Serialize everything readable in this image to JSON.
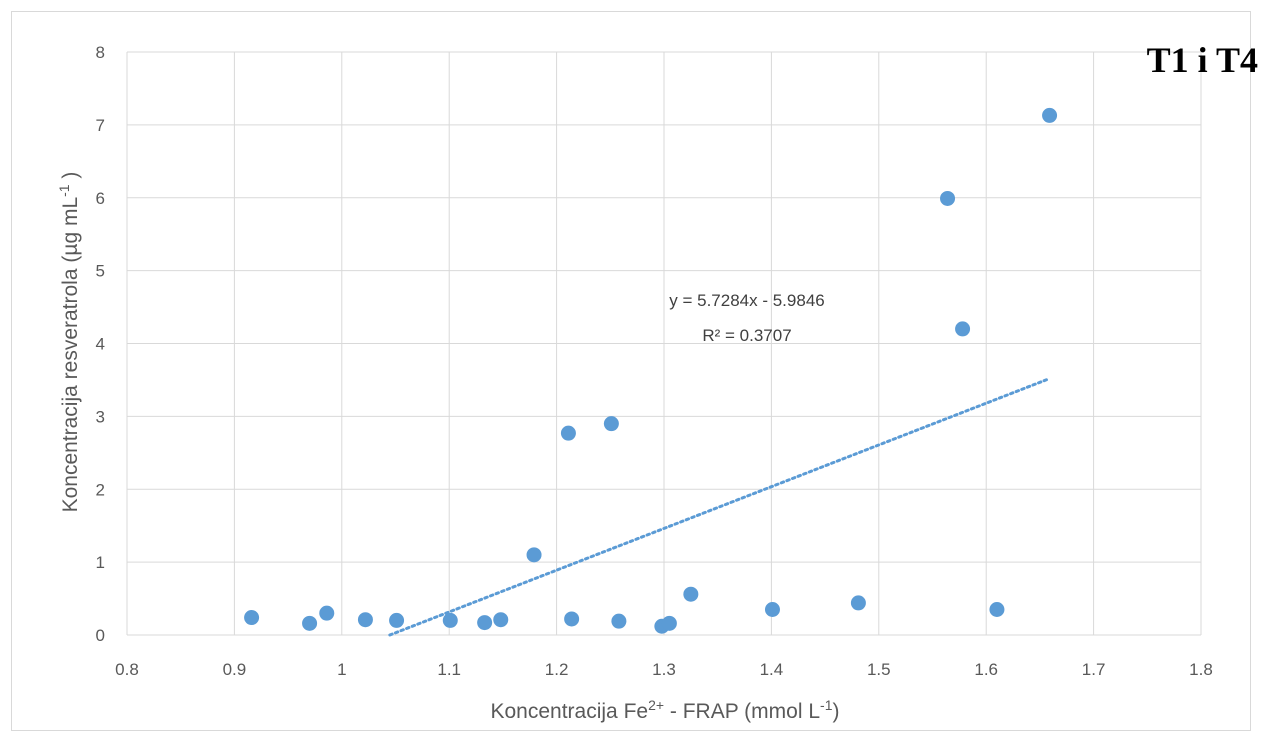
{
  "chart_data": {
    "type": "scatter",
    "title": "T1 i T4",
    "xlabel": {
      "pre": "Koncentracija Fe",
      "sup": "2+",
      "mid": " - FRAP (mmol L",
      "sup2": "-1",
      "post": ")"
    },
    "ylabel": {
      "pre": "Koncentracija resveratrola (µg mL",
      "sup": "-1",
      "post": " )"
    },
    "xlim": [
      0.8,
      1.8
    ],
    "ylim": [
      0,
      8
    ],
    "x_ticks": [
      "0.8",
      "0.9",
      "1",
      "1.1",
      "1.2",
      "1.3",
      "1.4",
      "1.5",
      "1.6",
      "1.7",
      "1.8"
    ],
    "y_ticks": [
      "0",
      "1",
      "2",
      "3",
      "4",
      "5",
      "6",
      "7",
      "8"
    ],
    "grid": true,
    "legend": "none",
    "colors": {
      "points": "#5b9bd5",
      "trendline": "#5b9bd5",
      "grid": "#d9d9d9"
    },
    "series": [
      {
        "points": [
          {
            "x": 0.916,
            "y": 0.24
          },
          {
            "x": 0.97,
            "y": 0.16
          },
          {
            "x": 0.986,
            "y": 0.3
          },
          {
            "x": 1.022,
            "y": 0.21
          },
          {
            "x": 1.051,
            "y": 0.2
          },
          {
            "x": 1.101,
            "y": 0.2
          },
          {
            "x": 1.133,
            "y": 0.17
          },
          {
            "x": 1.148,
            "y": 0.21
          },
          {
            "x": 1.179,
            "y": 1.1
          },
          {
            "x": 1.211,
            "y": 2.77
          },
          {
            "x": 1.214,
            "y": 0.22
          },
          {
            "x": 1.251,
            "y": 2.9
          },
          {
            "x": 1.258,
            "y": 0.19
          },
          {
            "x": 1.298,
            "y": 0.12
          },
          {
            "x": 1.305,
            "y": 0.16
          },
          {
            "x": 1.325,
            "y": 0.56
          },
          {
            "x": 1.401,
            "y": 0.35
          },
          {
            "x": 1.481,
            "y": 0.44
          },
          {
            "x": 1.564,
            "y": 5.99
          },
          {
            "x": 1.578,
            "y": 4.2
          },
          {
            "x": 1.61,
            "y": 0.35
          },
          {
            "x": 1.659,
            "y": 7.13
          }
        ]
      }
    ],
    "trendline": {
      "slope": 5.7284,
      "intercept": -5.9846,
      "x_range": [
        1.0447,
        1.659
      ],
      "style": "dotted"
    },
    "annotations": {
      "equation": "y = 5.7284x - 5.9846",
      "r2": "R² = 0.3707"
    }
  }
}
